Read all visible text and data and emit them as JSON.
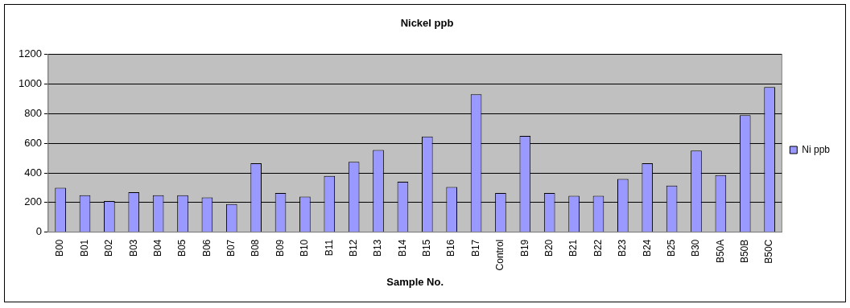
{
  "chart_data": {
    "type": "bar",
    "title": "Nickel ppb",
    "xlabel": "Sample No.",
    "categories": [
      "B00",
      "B01",
      "B02",
      "B03",
      "B04",
      "B05",
      "B06",
      "B07",
      "B08",
      "B09",
      "B10",
      "B11",
      "B12",
      "B13",
      "B14",
      "B15",
      "B16",
      "B17",
      "Control",
      "B19",
      "B20",
      "B21",
      "B22",
      "B23",
      "B24",
      "B25",
      "B30",
      "B50A",
      "B50B",
      "B50C"
    ],
    "series": [
      {
        "name": "Ni ppb",
        "color": "#9999ff",
        "values": [
          300,
          250,
          210,
          270,
          250,
          250,
          235,
          190,
          465,
          265,
          240,
          380,
          475,
          555,
          340,
          645,
          305,
          930,
          265,
          650,
          265,
          245,
          245,
          360,
          465,
          315,
          550,
          385,
          790,
          980
        ]
      }
    ],
    "ylim": [
      0,
      1200
    ],
    "yticks": [
      0,
      200,
      400,
      600,
      800,
      1000,
      1200
    ],
    "grid": "y",
    "legend": "right"
  }
}
